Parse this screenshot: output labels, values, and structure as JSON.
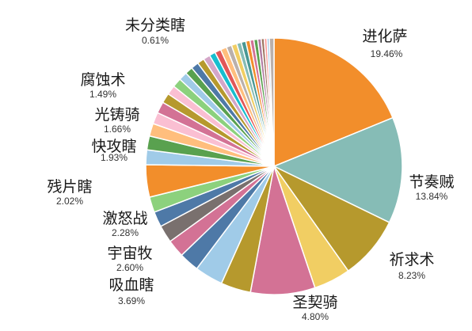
{
  "chart_data": {
    "type": "pie",
    "legend": "none",
    "slices": [
      {
        "name": "进化萨",
        "value": 19.46,
        "pct_label": "19.46%",
        "color": "#f28e2b",
        "labeled": true
      },
      {
        "name": "节奏贼",
        "value": 13.84,
        "pct_label": "13.84%",
        "color": "#86bcb6",
        "labeled": true
      },
      {
        "name": "祈求术",
        "value": 8.23,
        "pct_label": "8.23%",
        "color": "#b6992d",
        "labeled": true
      },
      {
        "name": "圣契骑",
        "value": 4.8,
        "pct_label": "4.80%",
        "color": "#f1ce63",
        "labeled": true
      },
      {
        "name": "",
        "value": 8.4,
        "color": "#d37295",
        "labeled": false
      },
      {
        "name": "",
        "value": 3.9,
        "color": "#b6992d",
        "labeled": false
      },
      {
        "name": "吸血瞎",
        "value": 3.69,
        "pct_label": "3.69%",
        "color": "#a0cbe8",
        "labeled": true
      },
      {
        "name": "宇宙牧",
        "value": 2.6,
        "pct_label": "2.60%",
        "color": "#4e79a7",
        "labeled": true
      },
      {
        "name": "",
        "value": 2.3,
        "color": "#d37295",
        "labeled": false
      },
      {
        "name": "激怒战",
        "value": 2.28,
        "pct_label": "2.28%",
        "color": "#79706e",
        "labeled": true
      },
      {
        "name": "",
        "value": 2.0,
        "color": "#4e79a7",
        "labeled": false
      },
      {
        "name": "残片瞎",
        "value": 2.02,
        "pct_label": "2.02%",
        "color": "#8cd17d",
        "labeled": true
      },
      {
        "name": "",
        "value": 4.2,
        "color": "#f28e2b",
        "labeled": false
      },
      {
        "name": "快攻瞎",
        "value": 1.93,
        "pct_label": "1.93%",
        "color": "#a0cbe8",
        "labeled": true
      },
      {
        "name": "",
        "value": 1.8,
        "color": "#59a14f",
        "labeled": false
      },
      {
        "name": "光铸骑",
        "value": 1.66,
        "pct_label": "1.66%",
        "color": "#ffbe7d",
        "labeled": true
      },
      {
        "name": "",
        "value": 1.5,
        "color": "#fabfd2",
        "labeled": false
      },
      {
        "name": "腐蚀术",
        "value": 1.49,
        "pct_label": "1.49%",
        "color": "#d37295",
        "labeled": true
      },
      {
        "name": "",
        "value": 1.3,
        "color": "#b6992d",
        "labeled": false
      },
      {
        "name": "",
        "value": 1.2,
        "color": "#fabfd2",
        "labeled": false
      },
      {
        "name": "",
        "value": 1.2,
        "color": "#8cd17d",
        "labeled": false
      },
      {
        "name": "",
        "value": 1.1,
        "color": "#a0cbe8",
        "labeled": false
      },
      {
        "name": "",
        "value": 1.0,
        "color": "#59a14f",
        "labeled": false
      },
      {
        "name": "",
        "value": 1.0,
        "color": "#4e79a7",
        "labeled": false
      },
      {
        "name": "",
        "value": 0.9,
        "color": "#b6992d",
        "labeled": false
      },
      {
        "name": "",
        "value": 0.9,
        "color": "#d4a6c8",
        "labeled": false
      },
      {
        "name": "",
        "value": 0.8,
        "color": "#17becf",
        "labeled": false
      },
      {
        "name": "",
        "value": 0.8,
        "color": "#e15759",
        "labeled": false
      },
      {
        "name": "",
        "value": 0.8,
        "color": "#ffbe7d",
        "labeled": false
      },
      {
        "name": "",
        "value": 0.7,
        "color": "#bab0ac",
        "labeled": false
      },
      {
        "name": "",
        "value": 0.7,
        "color": "#f1ce63",
        "labeled": false
      },
      {
        "name": "",
        "value": 0.6,
        "color": "#86bcb6",
        "labeled": false
      },
      {
        "name": "",
        "value": 0.6,
        "color": "#499894",
        "labeled": false
      },
      {
        "name": "",
        "value": 0.55,
        "color": "#f28e2b",
        "labeled": false
      },
      {
        "name": "",
        "value": 0.5,
        "color": "#d37295",
        "labeled": false
      },
      {
        "name": "",
        "value": 0.5,
        "color": "#59a14f",
        "labeled": false
      },
      {
        "name": "",
        "value": 0.45,
        "color": "#b07aa1",
        "labeled": false
      },
      {
        "name": "",
        "value": 0.4,
        "color": "#9d7660",
        "labeled": false
      },
      {
        "name": "",
        "value": 0.35,
        "color": "#ff9d9a",
        "labeled": false
      },
      {
        "name": "",
        "value": 0.3,
        "color": "#a0cbe8",
        "labeled": false
      },
      {
        "name": "未分类瞎",
        "value": 0.61,
        "pct_label": "0.61%",
        "color": "#bab0ac",
        "labeled": true
      }
    ]
  }
}
